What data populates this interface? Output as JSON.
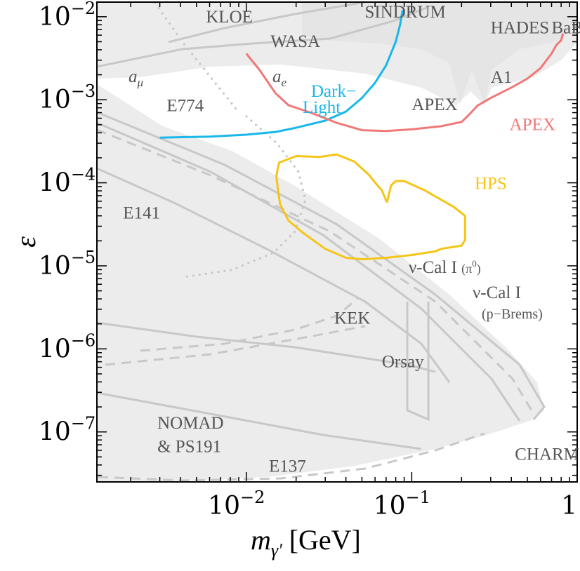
{
  "chart_data": {
    "type": "line",
    "title": "",
    "xlabel": "m_γ' [GeV]",
    "ylabel": "ε",
    "x_scale": "log",
    "y_scale": "log",
    "xlim": [
      0.00125,
      1
    ],
    "ylim": [
      2.5e-08,
      0.015
    ],
    "grid": false,
    "x_ticks": [
      {
        "value": 0.01,
        "mantissa": "10",
        "exp": "−2"
      },
      {
        "value": 0.1,
        "mantissa": "10",
        "exp": "−1"
      },
      {
        "value": 1,
        "mantissa": "1",
        "exp": ""
      }
    ],
    "y_ticks": [
      {
        "value": 1e-07,
        "mantissa": "10",
        "exp": "−7"
      },
      {
        "value": 1e-06,
        "mantissa": "10",
        "exp": "−6"
      },
      {
        "value": 1e-05,
        "mantissa": "10",
        "exp": "−5"
      },
      {
        "value": 0.0001,
        "mantissa": "10",
        "exp": "−4"
      },
      {
        "value": 0.001,
        "mantissa": "10",
        "exp": "−3"
      },
      {
        "value": 0.01,
        "mantissa": "10",
        "exp": "−2"
      }
    ],
    "series": [
      {
        "name": "Dark−Light",
        "color": "#1ab7ea",
        "points": [
          [
            0.003,
            0.00035
          ],
          [
            0.006,
            0.00036
          ],
          [
            0.01,
            0.00038
          ],
          [
            0.015,
            0.00041
          ],
          [
            0.02,
            0.00046
          ],
          [
            0.03,
            0.00056
          ],
          [
            0.04,
            0.00072
          ],
          [
            0.05,
            0.00105
          ],
          [
            0.06,
            0.0016
          ],
          [
            0.07,
            0.0026
          ],
          [
            0.08,
            0.005
          ],
          [
            0.085,
            0.008
          ],
          [
            0.088,
            0.012
          ]
        ]
      },
      {
        "name": "APEX",
        "color": "#f07878",
        "points": [
          [
            0.01,
            0.0036
          ],
          [
            0.012,
            0.0023
          ],
          [
            0.015,
            0.0012
          ],
          [
            0.018,
            0.00086
          ],
          [
            0.025,
            0.00069
          ],
          [
            0.035,
            0.00053
          ],
          [
            0.05,
            0.00043
          ],
          [
            0.07,
            0.00042
          ],
          [
            0.1,
            0.00044
          ],
          [
            0.15,
            0.00048
          ],
          [
            0.2,
            0.00054
          ],
          [
            0.22,
            0.00065
          ],
          [
            0.25,
            0.00085
          ],
          [
            0.3,
            0.00105
          ],
          [
            0.4,
            0.0014
          ],
          [
            0.5,
            0.0018
          ],
          [
            0.6,
            0.0024
          ],
          [
            0.7,
            0.0036
          ],
          [
            0.75,
            0.0046
          ],
          [
            0.8,
            0.0052
          ],
          [
            0.82,
            0.0063
          ]
        ]
      },
      {
        "name": "HPS",
        "color": "#f5c518",
        "closed": true,
        "points": [
          [
            0.0158,
            0.000175
          ],
          [
            0.02,
            0.00021
          ],
          [
            0.028,
            0.000205
          ],
          [
            0.035,
            0.00022
          ],
          [
            0.045,
            0.00018
          ],
          [
            0.055,
            0.000125
          ],
          [
            0.062,
            9.3e-05
          ],
          [
            0.066,
            8.1e-05
          ],
          [
            0.07,
            6.1e-05
          ],
          [
            0.071,
            5.9e-05
          ],
          [
            0.075,
            9.3e-05
          ],
          [
            0.08,
            0.000105
          ],
          [
            0.09,
            0.000105
          ],
          [
            0.12,
            8.1e-05
          ],
          [
            0.18,
            5.1e-05
          ],
          [
            0.21,
            4e-05
          ],
          [
            0.21,
            2.05e-05
          ],
          [
            0.2,
            1.75e-05
          ],
          [
            0.15,
            1.6e-05
          ],
          [
            0.14,
            1.5e-05
          ],
          [
            0.1,
            1.35e-05
          ],
          [
            0.07,
            1.25e-05
          ],
          [
            0.05,
            1.2e-05
          ],
          [
            0.04,
            1.25e-05
          ],
          [
            0.03,
            1.6e-05
          ],
          [
            0.022,
            2.5e-05
          ],
          [
            0.018,
            3.5e-05
          ],
          [
            0.016,
            5.5e-05
          ],
          [
            0.0155,
            8.5e-05
          ],
          [
            0.0152,
            0.00012
          ],
          [
            0.0155,
            0.00015
          ]
        ]
      }
    ],
    "labels": [
      {
        "text": "KLOE",
        "x": 0.0057,
        "y": 0.0085,
        "color": "#555555"
      },
      {
        "text": "SINDRUM",
        "x": 0.052,
        "y": 0.0098,
        "color": "#555555"
      },
      {
        "text": "HADES",
        "x": 0.3,
        "y": 0.0063,
        "color": "#555555"
      },
      {
        "text": "BaBar",
        "x": 0.7,
        "y": 0.0063,
        "color": "#555555"
      },
      {
        "text": "WASA",
        "x": 0.014,
        "y": 0.0043,
        "color": "#555555"
      },
      {
        "text": "A1",
        "x": 0.3,
        "y": 0.0016,
        "color": "#555555"
      },
      {
        "text": "APEX",
        "x": 0.1,
        "y": 0.00075,
        "color": "#555555"
      },
      {
        "text": "APEX",
        "x": 0.39,
        "y": 0.00043,
        "color": "#f07878"
      },
      {
        "text": "E774",
        "x": 0.0033,
        "y": 0.00073,
        "color": "#555555"
      },
      {
        "text": "HPS",
        "x": 0.24,
        "y": 8.4e-05,
        "color": "#f5c518"
      },
      {
        "text": "E141",
        "x": 0.0018,
        "y": 3.7e-05,
        "color": "#555555"
      },
      {
        "text": "KEK",
        "x": 0.034,
        "y": 2e-06,
        "color": "#555555"
      },
      {
        "text": "Orsay",
        "x": 0.066,
        "y": 6e-07,
        "color": "#555555"
      },
      {
        "text": "NOMAD",
        "x": 0.0029,
        "y": 1.1e-07,
        "color": "#555555"
      },
      {
        "text": "& PS191",
        "x": 0.0029,
        "y": 5.7e-08,
        "color": "#555555"
      },
      {
        "text": "E137",
        "x": 0.0137,
        "y": 3.3e-08,
        "color": "#555555"
      },
      {
        "text": "CHARM",
        "x": 0.42,
        "y": 4.6e-08,
        "color": "#555555"
      }
    ]
  },
  "annot": {
    "dark_light_1": "Dark−",
    "dark_light_2": "Light",
    "a_mu_base": "a",
    "a_mu_sub": "μ",
    "a_e_base": "a",
    "a_e_sub": "e",
    "nucal_pi_main": "ν-Cal I",
    "nucal_pi_paren": "(π",
    "nucal_pi_sup": "0",
    "nucal_pi_close": ")",
    "nucal_p_main": "ν-Cal I",
    "nucal_p_sub": "(p−Brems)",
    "xaxis_m": "m",
    "xaxis_gamma": "γ'",
    "xaxis_unit": "[GeV]",
    "yaxis": "ε"
  }
}
